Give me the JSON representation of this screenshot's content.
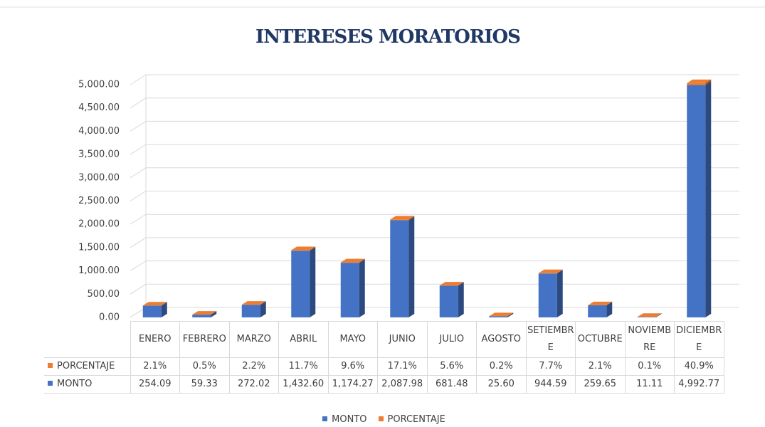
{
  "chart_data": {
    "type": "bar",
    "title": "INTERESES MORATORIOS",
    "categories": [
      "ENERO",
      "FEBRERO",
      "MARZO",
      "ABRIL",
      "MAYO",
      "JUNIO",
      "JULIO",
      "AGOSTO",
      "SETIEMBRE",
      "OCTUBRE",
      "NOVIEMBRE",
      "DICIEMBRE"
    ],
    "series": [
      {
        "name": "MONTO",
        "color": "#4472c4",
        "values": [
          254.09,
          59.33,
          272.02,
          1432.6,
          1174.27,
          2087.98,
          681.48,
          25.6,
          944.59,
          259.65,
          11.11,
          4992.77
        ],
        "value_labels": [
          "254.09",
          "59.33",
          "272.02",
          "1,432.60",
          "1,174.27",
          "2,087.98",
          "681.48",
          "25.60",
          "944.59",
          "259.65",
          "11.11",
          "4,992.77"
        ]
      },
      {
        "name": "PORCENTAJE",
        "color": "#ed7d31",
        "values": [
          2.1,
          0.5,
          2.2,
          11.7,
          9.6,
          17.1,
          5.6,
          0.2,
          7.7,
          2.1,
          0.1,
          40.9
        ],
        "value_labels": [
          "2.1%",
          "0.5%",
          "2.2%",
          "11.7%",
          "9.6%",
          "17.1%",
          "5.6%",
          "0.2%",
          "7.7%",
          "2.1%",
          "0.1%",
          "40.9%"
        ]
      }
    ],
    "ylim": [
      0,
      5000
    ],
    "yticks": [
      {
        "value": 0,
        "label": "0.00"
      },
      {
        "value": 500,
        "label": "500.00"
      },
      {
        "value": 1000,
        "label": "1,000.00"
      },
      {
        "value": 1500,
        "label": "1,500.00"
      },
      {
        "value": 2000,
        "label": "2,000.00"
      },
      {
        "value": 2500,
        "label": "2,500.00"
      },
      {
        "value": 3000,
        "label": "3,000.00"
      },
      {
        "value": 3500,
        "label": "3,500.00"
      },
      {
        "value": 4000,
        "label": "4,000.00"
      },
      {
        "value": 4500,
        "label": "4,500.00"
      },
      {
        "value": 5000,
        "label": "5,000.00"
      }
    ],
    "grid": true,
    "stacked": true
  }
}
